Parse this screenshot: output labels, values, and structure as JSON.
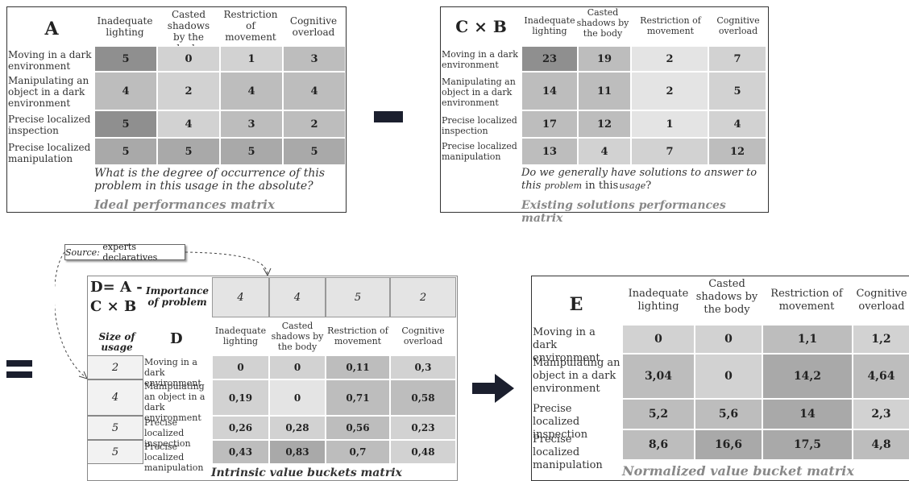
{
  "matrix_a": {
    "title": "A",
    "columns": [
      "Inadequate lighting",
      "Casted shadows by the body",
      "Restriction of movement",
      "Cognitive overload"
    ],
    "rows": [
      "Moving in a dark environment",
      "Manipulating an object in a dark environment",
      "Precise localized inspection",
      "Precise localized manipulation"
    ],
    "values": [
      [
        "5",
        "0",
        "1",
        "3"
      ],
      [
        "4",
        "2",
        "4",
        "4"
      ],
      [
        "5",
        "4",
        "3",
        "2"
      ],
      [
        "5",
        "5",
        "5",
        "5"
      ]
    ],
    "question": "What is the degree of occurrence of this problem in this usage in the absolute?",
    "caption": "Ideal performances matrix"
  },
  "matrix_cb": {
    "title": "C × B",
    "columns": [
      "Inadequate lighting",
      "Casted shadows by the body",
      "Restriction of movement",
      "Cognitive overload"
    ],
    "rows": [
      "Moving in a dark environment",
      "Manipulating an object in a dark environment",
      "Precise localized inspection",
      "Precise localized manipulation"
    ],
    "values": [
      [
        "23",
        "19",
        "2",
        "7"
      ],
      [
        "14",
        "11",
        "2",
        "5"
      ],
      [
        "17",
        "12",
        "1",
        "4"
      ],
      [
        "13",
        "4",
        "7",
        "12"
      ]
    ],
    "question_part1": "Do we generally have solutions to answer to this",
    "question_problem": "problem",
    "question_in_this": "in this",
    "question_usage": "usage",
    "question_end": "?",
    "caption": "Existing solutions performances matrix"
  },
  "matrix_d": {
    "source_label": "Source:",
    "source_text": "experts declaratives",
    "formula_line1": "D= A -",
    "formula_line2": "C × B",
    "importance_label": "Importance of problem",
    "importance": [
      "4",
      "4",
      "5",
      "2"
    ],
    "size_label": "Size of usage",
    "title": "D",
    "columns": [
      "Inadequate lighting",
      "Casted shadows by the body",
      "Restriction of movement",
      "Cognitive overload"
    ],
    "sizes": [
      "2",
      "4",
      "5",
      "5"
    ],
    "rows": [
      "Moving in a dark environment",
      "Manipulating an object in a dark environment",
      "Precise localized inspection",
      "Precise localized manipulation"
    ],
    "values": [
      [
        "0",
        "0",
        "0,11",
        "0,3"
      ],
      [
        "0,19",
        "0",
        "0,71",
        "0,58"
      ],
      [
        "0,26",
        "0,28",
        "0,56",
        "0,23"
      ],
      [
        "0,43",
        "0,83",
        "0,7",
        "0,48"
      ]
    ],
    "caption": "Intrinsic value buckets matrix"
  },
  "matrix_e": {
    "title": "E",
    "columns": [
      "Inadequate lighting",
      "Casted shadows by the body",
      "Restriction of movement",
      "Cognitive overload"
    ],
    "rows": [
      "Moving in a dark environment",
      "Manipulating an object in a dark environment",
      "Precise localized inspection",
      "Precise localized manipulation"
    ],
    "values": [
      [
        "0",
        "0",
        "1,1",
        "1,2"
      ],
      [
        "3,04",
        "0",
        "14,2",
        "4,64"
      ],
      [
        "5,2",
        "5,6",
        "14",
        "2,3"
      ],
      [
        "8,6",
        "16,6",
        "17,5",
        "4,8"
      ]
    ],
    "caption": "Normalized value bucket matrix"
  },
  "colors": {
    "operator": "#1b1f2e",
    "caption": "#888888"
  }
}
